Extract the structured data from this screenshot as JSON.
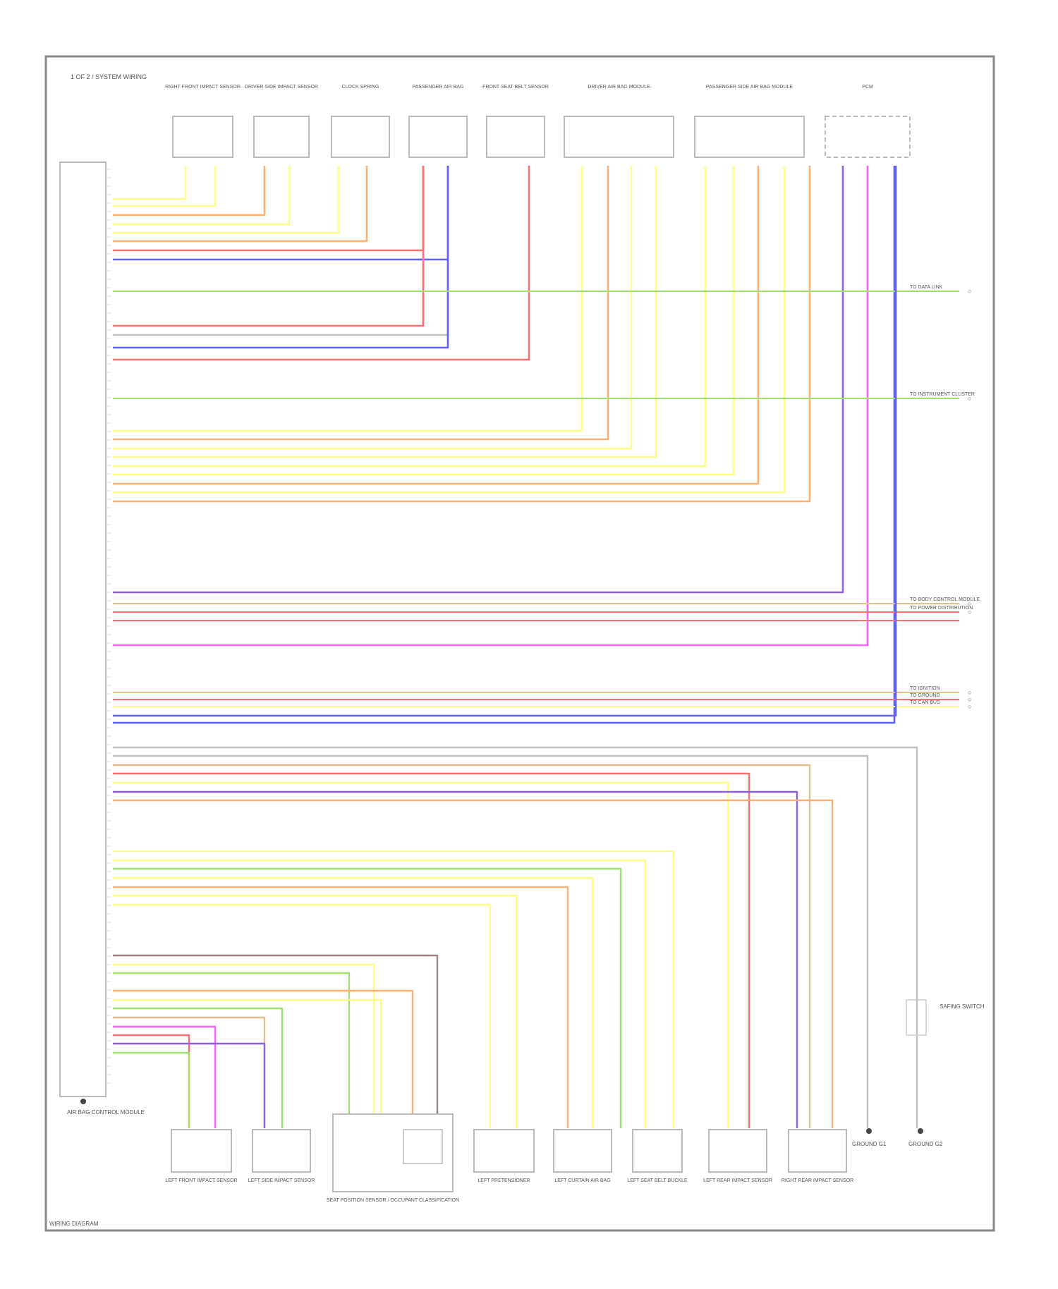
{
  "diagram": {
    "header_label": "1 OF 2 / SYSTEM WIRING",
    "footer_id": "WIRING DIAGRAM",
    "module_label": "AIR BAG CONTROL MODULE",
    "top_components": [
      {
        "label": "RIGHT FRONT IMPACT SENSOR",
        "pins": 2
      },
      {
        "label": "DRIVER SIDE IMPACT SENSOR",
        "pins": 2
      },
      {
        "label": "CLOCK SPRING",
        "pins": 2
      },
      {
        "label": "PASSENGER AIR BAG",
        "pins": 2
      },
      {
        "label": "FRONT SEAT BELT SENSOR",
        "pins": 2
      },
      {
        "label": "DRIVER AIR BAG MODULE",
        "pins": 4
      },
      {
        "label": "PASSENGER SIDE AIR BAG MODULE",
        "pins": 4
      },
      {
        "label": "PCM",
        "pins": 3
      }
    ],
    "bottom_components": [
      {
        "label": "LEFT FRONT IMPACT SENSOR"
      },
      {
        "label": "LEFT SIDE IMPACT SENSOR"
      },
      {
        "label": "SEAT POSITION SENSOR / OCCUPANT CLASSIFICATION"
      },
      {
        "label": "LEFT PRETENSIONER"
      },
      {
        "label": "LEFT CURTAIN AIR BAG"
      },
      {
        "label": "LEFT SEAT BELT BUCKLE"
      },
      {
        "label": "LEFT REAR IMPACT SENSOR"
      },
      {
        "label": "RIGHT REAR IMPACT SENSOR"
      }
    ],
    "ground_labels": [
      "GROUND G1",
      "GROUND G2"
    ],
    "side_switch_label": "SAFING SWITCH",
    "right_edge_labels": [
      "TO DATA LINK",
      "TO INSTRUMENT CLUSTER",
      "TO BODY CONTROL MODULE",
      "TO POWER DISTRIBUTION",
      "TO IGNITION",
      "TO GROUND",
      "TO CAN BUS"
    ],
    "wire_colors": {
      "yellow": "#ffff88",
      "orange": "#ffb070",
      "red": "#ff7070",
      "blue": "#6060ff",
      "violet": "#9060e0",
      "green": "#a0e070",
      "pink": "#ff60ff",
      "grey": "#c0c0c0",
      "tan": "#e0c090",
      "brown": "#a08080"
    }
  }
}
